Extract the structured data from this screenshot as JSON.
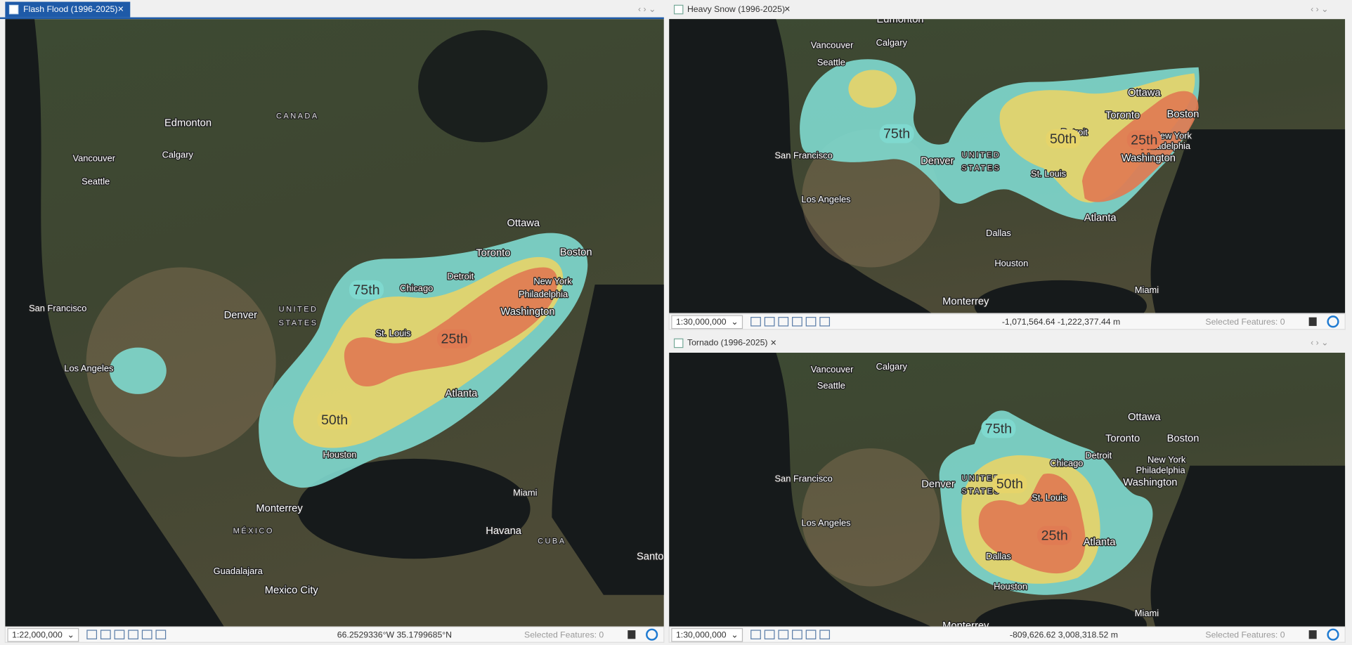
{
  "panes": [
    {
      "tab": "Flash Flood (1996-2025)",
      "scale": "1:22,000,000",
      "coordinates": "66.2529336°W 35.1799685°N",
      "selected_features": "Selected Features: 0",
      "contours": [
        {
          "label": "75th",
          "color": "#7fd9cf"
        },
        {
          "label": "25th",
          "color": "#e07b53"
        },
        {
          "label": "50th",
          "color": "#e6d46a"
        }
      ],
      "places": [
        "CANADA",
        "Edmonton",
        "Vancouver",
        "Calgary",
        "Seattle",
        "Ottawa",
        "Toronto",
        "Boston",
        "Chicago",
        "Detroit",
        "New York",
        "Philadelphia",
        "Washington",
        "San Francisco",
        "Denver",
        "UNITED",
        "STATES",
        "St. Louis",
        "Los Angeles",
        "Atlanta",
        "Houston",
        "Miami",
        "Monterrey",
        "Havana",
        "MÉXICO",
        "CUBA",
        "Guadalajara",
        "Mexico City",
        "Santo"
      ]
    },
    {
      "tab": "Heavy Snow (1996-2025)",
      "scale": "1:30,000,000",
      "coordinates": "-1,071,564.64 -1,222,377.44 m",
      "selected_features": "Selected Features: 0",
      "contours": [
        {
          "label": "75th",
          "color": "#7fd9cf"
        },
        {
          "label": "50th",
          "color": "#e6d46a"
        },
        {
          "label": "25th",
          "color": "#e07b53"
        }
      ],
      "places": [
        "Edmonton",
        "Vancouver",
        "Calgary",
        "Seattle",
        "Ottawa",
        "Toronto",
        "Boston",
        "Detroit",
        "New York",
        "Philadelphia",
        "San Francisco",
        "Denver",
        "UNITED",
        "STATES",
        "St. Louis",
        "Washington",
        "Los Angeles",
        "Atlanta",
        "Dallas",
        "Houston",
        "Miami",
        "Monterrey"
      ]
    },
    {
      "tab": "Tornado (1996-2025)",
      "scale": "1:30,000,000",
      "coordinates": "-809,626.62 3,008,318.52 m",
      "selected_features": "Selected Features: 0",
      "contours": [
        {
          "label": "75th",
          "color": "#7fd9cf"
        },
        {
          "label": "50th",
          "color": "#e6d46a"
        },
        {
          "label": "25th",
          "color": "#e07b53"
        }
      ],
      "places": [
        "Vancouver",
        "Calgary",
        "Seattle",
        "Ottawa",
        "Toronto",
        "Boston",
        "Detroit",
        "Chicago",
        "New York",
        "Philadelphia",
        "Washington",
        "San Francisco",
        "Denver",
        "UNITED",
        "STATES",
        "St. Louis",
        "Los Angeles",
        "Atlanta",
        "Dallas",
        "Houston",
        "Miami",
        "Monterrey"
      ]
    }
  ]
}
